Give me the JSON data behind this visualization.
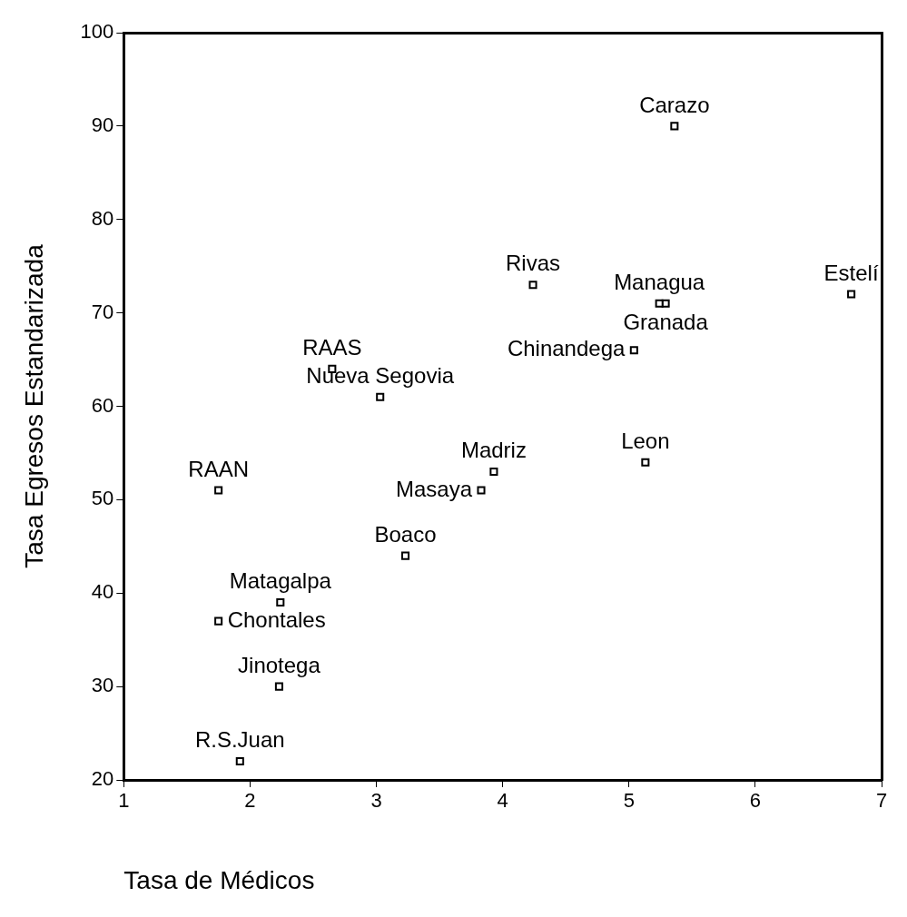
{
  "chart_data": {
    "type": "scatter",
    "xlabel": "Tasa de Médicos",
    "ylabel": "Tasa Egresos Estandarizada",
    "xlim": [
      1,
      7
    ],
    "xticks": [
      1,
      2,
      3,
      4,
      5,
      6,
      7
    ],
    "ylim": [
      20,
      100
    ],
    "yticks": [
      20,
      30,
      40,
      50,
      60,
      70,
      80,
      90,
      100
    ],
    "grid": false,
    "legend": false,
    "marker": "square",
    "series": [
      {
        "name": "Carazo",
        "color": "#000000",
        "x": [
          5.36
        ],
        "values": [
          90
        ]
      },
      {
        "name": "Rivas",
        "color": "#000000",
        "x": [
          4.24
        ],
        "values": [
          73
        ]
      },
      {
        "name": "Managua",
        "color": "#000000",
        "x": [
          5.24
        ],
        "values": [
          71
        ]
      },
      {
        "name": "Granada",
        "color": "#000000",
        "x": [
          5.29
        ],
        "values": [
          71
        ]
      },
      {
        "name": "Estelí",
        "color": "#000000",
        "x": [
          6.76
        ],
        "values": [
          72
        ]
      },
      {
        "name": "Chinandega",
        "color": "#000000",
        "x": [
          5.04
        ],
        "values": [
          66
        ]
      },
      {
        "name": "RAAS",
        "color": "#000000",
        "x": [
          2.65
        ],
        "values": [
          64
        ]
      },
      {
        "name": "Nueva Segovia",
        "color": "#000000",
        "x": [
          3.03
        ],
        "values": [
          61
        ]
      },
      {
        "name": "Madriz",
        "color": "#000000",
        "x": [
          3.93
        ],
        "values": [
          53
        ]
      },
      {
        "name": "Masaya",
        "color": "#000000",
        "x": [
          3.83
        ],
        "values": [
          51
        ]
      },
      {
        "name": "Leon",
        "color": "#000000",
        "x": [
          5.13
        ],
        "values": [
          54
        ]
      },
      {
        "name": "RAAN",
        "color": "#000000",
        "x": [
          1.75
        ],
        "values": [
          51
        ]
      },
      {
        "name": "Boaco",
        "color": "#000000",
        "x": [
          3.23
        ],
        "values": [
          44
        ]
      },
      {
        "name": "Matagalpa",
        "color": "#000000",
        "x": [
          2.24
        ],
        "values": [
          39
        ]
      },
      {
        "name": "Chontales",
        "color": "#000000",
        "x": [
          1.75
        ],
        "values": [
          37
        ]
      },
      {
        "name": "Jinotega",
        "color": "#000000",
        "x": [
          2.23
        ],
        "values": [
          30
        ]
      },
      {
        "name": "R.S.Juan",
        "color": "#000000",
        "x": [
          1.92
        ],
        "values": [
          22
        ]
      }
    ]
  }
}
